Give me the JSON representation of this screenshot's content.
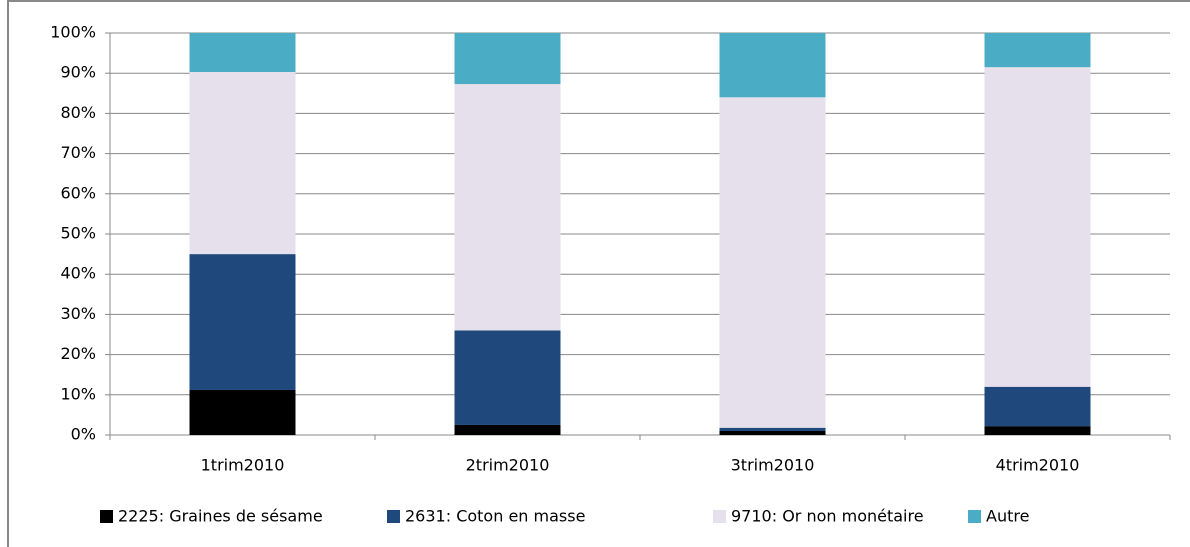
{
  "chart_data": {
    "type": "stacked_bar",
    "categories": [
      "1trim2010",
      "2trim2010",
      "3trim2010",
      "4trim2010"
    ],
    "series": [
      {
        "name": "2225: Graines de sésame",
        "color": "#000000",
        "values": [
          11.2,
          2.5,
          1.0,
          2.2
        ]
      },
      {
        "name": "2631: Coton en masse",
        "color": "#1f497d",
        "values": [
          33.8,
          23.5,
          0.8,
          9.8
        ]
      },
      {
        "name": "9710: Or non monétaire",
        "color": "#e6e0ec",
        "values": [
          45.3,
          61.3,
          82.2,
          79.5
        ]
      },
      {
        "name": "Autre",
        "color": "#4bacc6",
        "values": [
          9.7,
          12.7,
          16.0,
          8.5
        ]
      }
    ],
    "ylim": [
      0,
      100
    ],
    "yticks": [
      {
        "value": 0,
        "label": "0%"
      },
      {
        "value": 10,
        "label": "10%"
      },
      {
        "value": 20,
        "label": "20%"
      },
      {
        "value": 30,
        "label": "30%"
      },
      {
        "value": 40,
        "label": "40%"
      },
      {
        "value": 50,
        "label": "50%"
      },
      {
        "value": 60,
        "label": "60%"
      },
      {
        "value": 70,
        "label": "70%"
      },
      {
        "value": 80,
        "label": "80%"
      },
      {
        "value": 90,
        "label": "90%"
      },
      {
        "value": 100,
        "label": "100%"
      }
    ],
    "grid": true,
    "legend": "bottom"
  }
}
